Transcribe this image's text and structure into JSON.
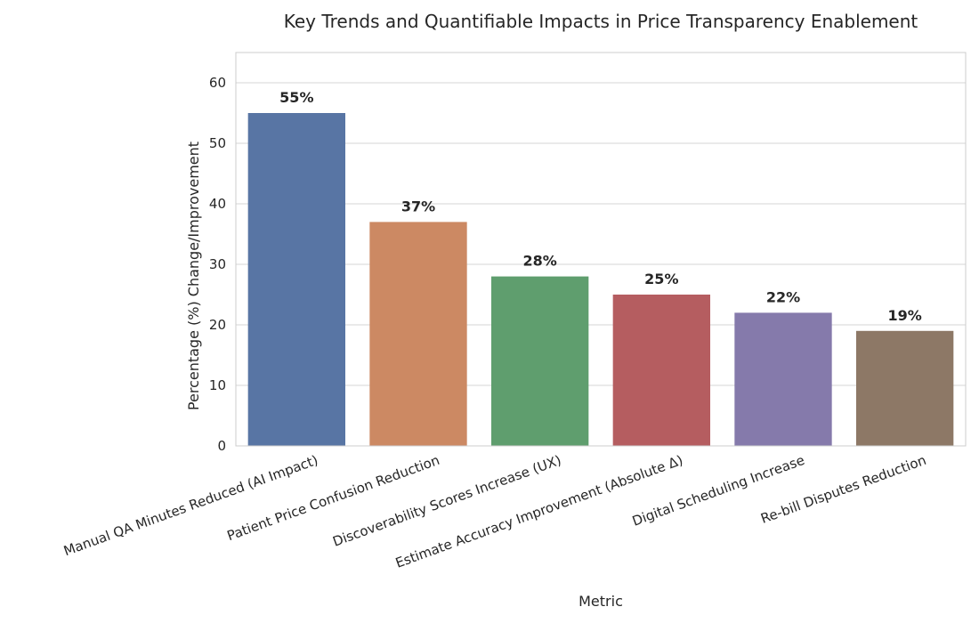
{
  "chart_data": {
    "type": "bar",
    "title": "Key Trends and Quantifiable Impacts in Price Transparency Enablement",
    "xlabel": "Metric",
    "ylabel": "Percentage (%) Change/Improvement",
    "categories": [
      "Manual QA Minutes Reduced (AI Impact)",
      "Patient Price Confusion Reduction",
      "Discoverability Scores Increase (UX)",
      "Estimate Accuracy Improvement (Absolute Δ)",
      "Digital Scheduling Increase",
      "Re-bill Disputes Reduction"
    ],
    "values": [
      55,
      37,
      28,
      25,
      22,
      19
    ],
    "data_labels": [
      "55%",
      "37%",
      "28%",
      "25%",
      "22%",
      "19%"
    ],
    "colors": [
      "#5875a4",
      "#cc8963",
      "#5f9e6e",
      "#b55d60",
      "#857aab",
      "#8d7866"
    ],
    "ylim": [
      0,
      65
    ],
    "yticks": [
      0,
      10,
      20,
      30,
      40,
      50,
      60
    ],
    "grid": true,
    "x_tick_rotation_deg": -20
  }
}
